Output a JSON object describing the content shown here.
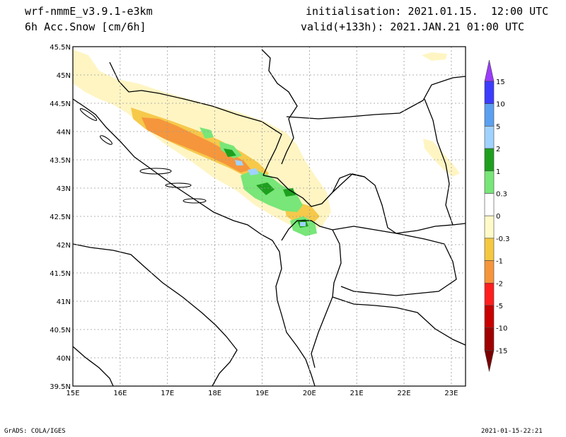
{
  "header": {
    "model": "wrf-nmmE_v3.9.1-e3km",
    "field": "6h Acc.Snow [cm/6h]",
    "init": "initialisation: 2021.01.15.  12:00 UTC",
    "valid": "valid(+133h): 2021.JAN.21 01:00 UTC"
  },
  "footer": {
    "left": "GrADS: COLA/IGES",
    "right": "2021-01-15-22:21"
  },
  "map": {
    "lon_ticks": [
      "15E",
      "16E",
      "17E",
      "18E",
      "19E",
      "20E",
      "21E",
      "22E",
      "23E"
    ],
    "lat_ticks": [
      "45.5N",
      "45N",
      "44.5N",
      "44N",
      "43.5N",
      "43N",
      "42.5N",
      "42N",
      "41.5N",
      "41N",
      "40.5N",
      "40N",
      "39.5N"
    ],
    "lon_range": [
      15,
      23.3
    ],
    "lat_range": [
      39.5,
      45.5
    ],
    "grid": true
  },
  "legend": {
    "labels": [
      "15",
      "10",
      "5",
      "2",
      "1",
      "0.3",
      "0",
      "-0.3",
      "-1",
      "-2",
      "-5",
      "-10",
      "-15"
    ],
    "colors": [
      "#9c3cff",
      "#3c3cff",
      "#5aa0f0",
      "#a0d2ff",
      "#1ea01e",
      "#78e678",
      "#ffffff",
      "#fffac8",
      "#f5c841",
      "#f5963c",
      "#ff1e1e",
      "#c80000",
      "#a00000",
      "#7a0000"
    ]
  },
  "colors": {
    "light_yellow": "#fff5c3",
    "yellow": "#f6c94a",
    "orange": "#f5963c",
    "light_green": "#78e678",
    "dark_green": "#1ea01e",
    "light_blue": "#a0d2ff"
  }
}
